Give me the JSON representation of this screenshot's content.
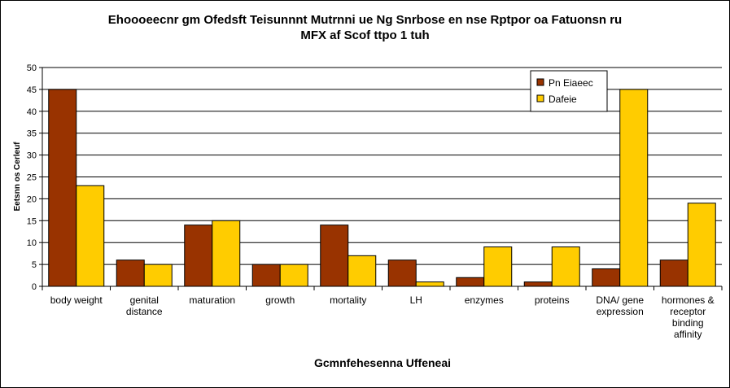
{
  "chart_data": {
    "type": "bar",
    "title_line1": "Ehoooeecnr gm Ofedsft Teisunnnt Mutrnni ue Ng Snrbose en nse Rptpor oa  Fatuonsn ru",
    "title_line2": "MFX af Scof ttpo 1 tuh",
    "xlabel": "Gcmnfehesenna Uffeneai",
    "ylabel": "Eetsnn os Cerleuf",
    "ylim": [
      0,
      50
    ],
    "yticks": [
      0,
      5,
      10,
      15,
      20,
      25,
      30,
      35,
      40,
      45,
      50
    ],
    "grid": true,
    "legend_position": "top-right",
    "categories": [
      [
        "body weight"
      ],
      [
        "genital",
        "distance"
      ],
      [
        "maturation"
      ],
      [
        "growth"
      ],
      [
        "mortality"
      ],
      [
        "LH"
      ],
      [
        "enzymes"
      ],
      [
        "proteins"
      ],
      [
        "DNA/ gene",
        "expression"
      ],
      [
        "hormones &",
        "receptor",
        "binding",
        "affinity"
      ]
    ],
    "series": [
      {
        "name": "Pn Eiaeec",
        "color": "#993300",
        "values": [
          45,
          6,
          14,
          5,
          14,
          6,
          2,
          1,
          4,
          6
        ]
      },
      {
        "name": "Dafeie",
        "color": "#FFCC00",
        "values": [
          23,
          5,
          15,
          5,
          7,
          1,
          9,
          9,
          45,
          19
        ]
      }
    ]
  }
}
